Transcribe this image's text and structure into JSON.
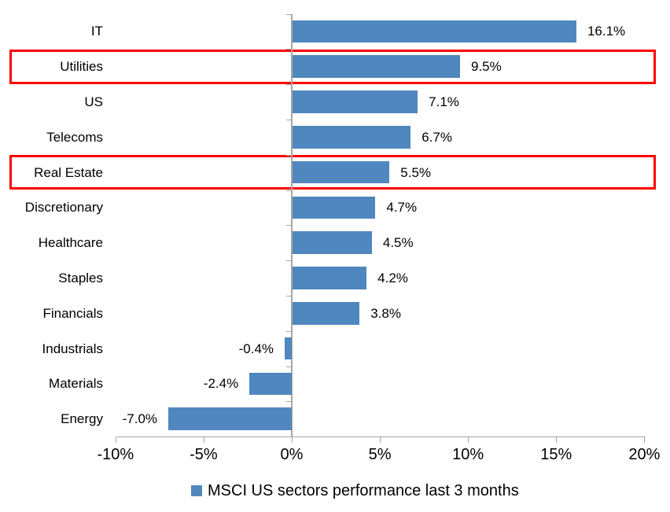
{
  "chart_data": {
    "type": "bar",
    "orientation": "horizontal",
    "title": "",
    "xlabel": "",
    "ylabel": "",
    "categories": [
      "IT",
      "Utilities",
      "US",
      "Telecoms",
      "Real Estate",
      "Discretionary",
      "Healthcare",
      "Staples",
      "Financials",
      "Industrials",
      "Materials",
      "Energy"
    ],
    "values": [
      16.1,
      9.5,
      7.1,
      6.7,
      5.5,
      4.7,
      4.5,
      4.2,
      3.8,
      -0.4,
      -2.4,
      -7.0
    ],
    "value_labels": [
      "16.1%",
      "9.5%",
      "7.1%",
      "6.7%",
      "5.5%",
      "4.7%",
      "4.5%",
      "4.2%",
      "3.8%",
      "-0.4%",
      "-2.4%",
      "-7.0%"
    ],
    "highlighted_categories": [
      "Utilities",
      "Real Estate"
    ],
    "xlim": [
      -10,
      20
    ],
    "x_ticks": [
      {
        "label": "-10%",
        "value": -10
      },
      {
        "label": "-5%",
        "value": -5
      },
      {
        "label": "0%",
        "value": 0
      },
      {
        "label": "5%",
        "value": 5
      },
      {
        "label": "10%",
        "value": 10
      },
      {
        "label": "15%",
        "value": 15
      },
      {
        "label": "20%",
        "value": 20
      }
    ],
    "grid": false,
    "legend": {
      "position": "bottom",
      "label": "MSCI US sectors performance last 3 months"
    },
    "colors": {
      "bar": "#5087be",
      "highlight_box": "#fe0000",
      "axis": "#a6a6a6",
      "text": "#000000"
    }
  }
}
